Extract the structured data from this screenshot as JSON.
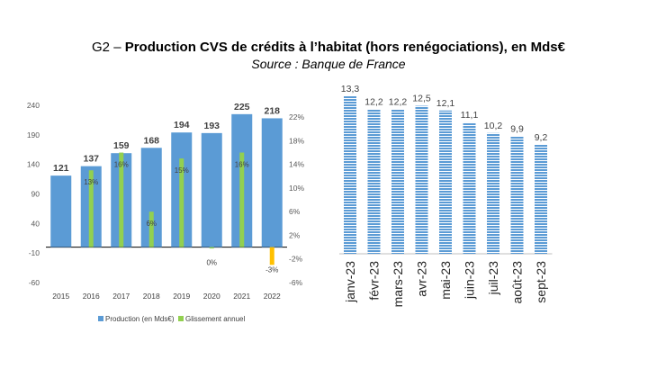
{
  "title": {
    "prefix": "G2 – ",
    "main": "Production CVS de crédits à l’habitat (hors renégociations), en Mds€",
    "source": "Source : Banque de France"
  },
  "colors": {
    "production": "#5b9bd5",
    "glissement_pos": "#92d050",
    "glissement_neg": "#ffc000",
    "hatch": "#5b9bd5"
  },
  "chart_data": [
    {
      "type": "bar",
      "categories": [
        "2015",
        "2016",
        "2017",
        "2018",
        "2019",
        "2020",
        "2021",
        "2022"
      ],
      "series": [
        {
          "name": "Production (en Mds€)",
          "axis": "left",
          "values": [
            121,
            137,
            159,
            168,
            194,
            193,
            225,
            218
          ],
          "labels": [
            "121",
            "137",
            "159",
            "168",
            "194",
            "193",
            "225",
            "218"
          ]
        },
        {
          "name": "Glissement annuel",
          "axis": "right",
          "values": [
            null,
            13,
            16,
            6,
            15,
            0,
            16,
            -3
          ],
          "labels": [
            "",
            "13%",
            "16%",
            "6%",
            "15%",
            "0%",
            "16%",
            "-3%"
          ]
        }
      ],
      "y_left": {
        "ylim": [
          -60,
          240
        ],
        "ticks": [
          "240",
          "190",
          "140",
          "90",
          "40",
          "-10",
          "-60"
        ]
      },
      "y_right": {
        "ylim": [
          -6,
          24
        ],
        "ticks": [
          "22%",
          "18%",
          "14%",
          "10%",
          "6%",
          "2%",
          "-2%",
          "-6%"
        ]
      },
      "legend": {
        "placement": "bottom"
      },
      "grid": false
    },
    {
      "type": "bar",
      "categories": [
        "janv-23",
        "févr-23",
        "mars-23",
        "avr-23",
        "mai-23",
        "juin-23",
        "juil-23",
        "août-23",
        "sept-23"
      ],
      "values": [
        13.3,
        12.2,
        12.2,
        12.5,
        12.1,
        11.1,
        10.2,
        9.9,
        9.2
      ],
      "labels": [
        "13,3",
        "12,2",
        "12,2",
        "12,5",
        "12,1",
        "11,1",
        "10,2",
        "9,9",
        "9,2"
      ],
      "ylim": [
        0,
        14
      ],
      "grid": false,
      "pattern": "horizontal-hatch"
    }
  ]
}
